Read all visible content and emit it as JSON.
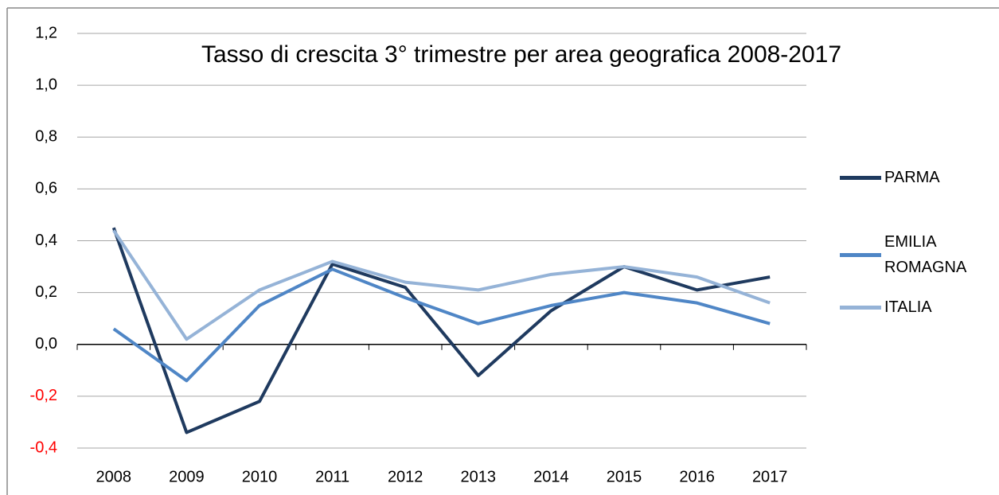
{
  "chart_data": {
    "type": "line",
    "title": "Tasso di crescita 3° trimestre per area geografica 2008-2017",
    "categories": [
      "2008",
      "2009",
      "2010",
      "2011",
      "2012",
      "2013",
      "2014",
      "2015",
      "2016",
      "2017"
    ],
    "series": [
      {
        "name": "PARMA",
        "color": "#1f3a5f",
        "values": [
          0.45,
          -0.34,
          -0.22,
          0.31,
          0.22,
          -0.12,
          0.13,
          0.3,
          0.21,
          0.26
        ]
      },
      {
        "name": "EMILIA ROMAGNA",
        "color": "#4f86c6",
        "values": [
          0.06,
          -0.14,
          0.15,
          0.29,
          0.18,
          0.08,
          0.15,
          0.2,
          0.16,
          0.08
        ]
      },
      {
        "name": "ITALIA",
        "color": "#95b3d7",
        "values": [
          0.44,
          0.02,
          0.21,
          0.32,
          0.24,
          0.21,
          0.27,
          0.3,
          0.26,
          0.16
        ]
      }
    ],
    "ylim": [
      -0.4,
      1.2
    ],
    "yticks": [
      {
        "value": -0.4,
        "label": "-0,4"
      },
      {
        "value": -0.2,
        "label": "-0,2"
      },
      {
        "value": 0,
        "label": "0,0"
      },
      {
        "value": 0.2,
        "label": "0,2"
      },
      {
        "value": 0.4,
        "label": "0,4"
      },
      {
        "value": 0.6,
        "label": "0,6"
      },
      {
        "value": 0.8,
        "label": "0,8"
      },
      {
        "value": 1.0,
        "label": "1,0"
      },
      {
        "value": 1.2,
        "label": "1,2"
      }
    ],
    "grid": true,
    "negative_tick_color": "#ff0000",
    "legend": "right"
  }
}
